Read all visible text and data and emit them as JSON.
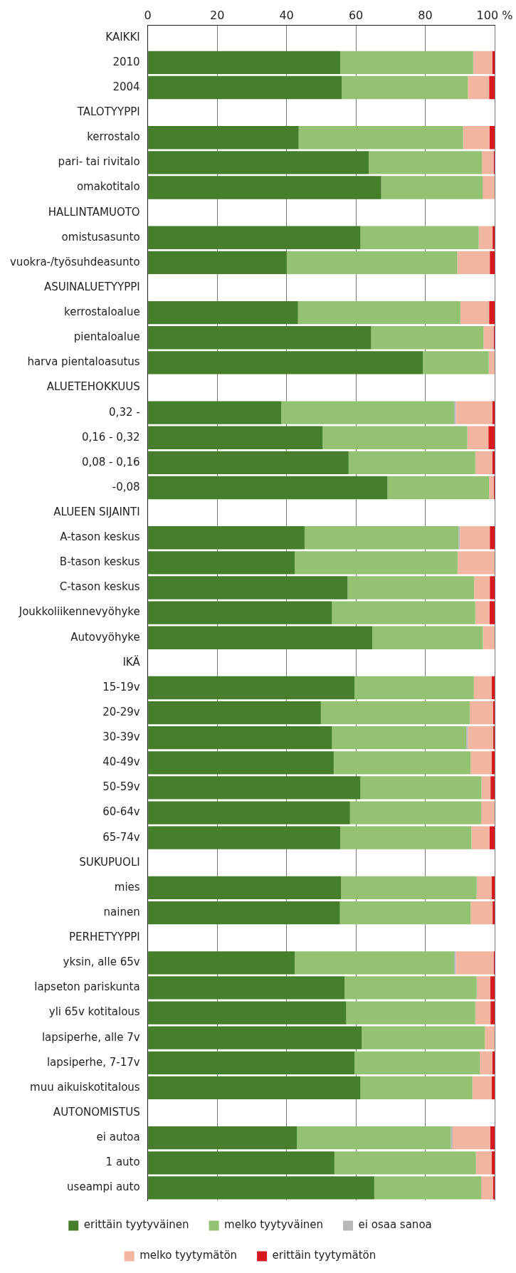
{
  "chart_data": {
    "type": "bar",
    "orientation": "horizontal",
    "stacked": true,
    "categories": [
      "KAIKKI",
      "2010",
      "2004",
      "TALOTYYPPI",
      "kerrostalo",
      "pari- tai rivitalo",
      "omakotitalo",
      "HALLINTAMUOTO",
      "omistusasunto",
      "vuokra-/työsuhdeasunto",
      "ASUINALUETYYPPI",
      "kerrostaloalue",
      "pientaloalue",
      "harva pientaloasutus",
      "ALUETEHOKKUUS",
      "0,32 -",
      "0,16 - 0,32",
      "0,08 - 0,16",
      "-0,08",
      "ALUEEN SIJAINTI",
      "A-tason keskus",
      "B-tason keskus",
      "C-tason keskus",
      "Joukkoliikennevyöhyke",
      "Autovyöhyke",
      "IKÄ",
      "15-19v",
      "20-29v",
      "30-39v",
      "40-49v",
      "50-59v",
      "60-64v",
      "65-74v",
      "SUKUPUOLI",
      "mies",
      "nainen",
      "PERHETYYPPI",
      "yksin, alle 65v",
      "lapseton pariskunta",
      "yli 65v kotitalous",
      "lapsiperhe, alle 7v",
      "lapsiperhe, 7-17v",
      "muu aikuiskotitalous",
      "AUTONOMISTUS",
      "ei autoa",
      "1 auto",
      "useampi auto"
    ],
    "series": [
      {
        "name": "erittäin tyytyväinen",
        "color": "#467f2c",
        "values": [
          null,
          55.5,
          55.9,
          null,
          43.5,
          63.7,
          67.3,
          null,
          61.3,
          40.0,
          null,
          43.3,
          64.4,
          79.3,
          null,
          38.5,
          50.4,
          57.9,
          69.1,
          null,
          45.2,
          42.4,
          57.6,
          53.1,
          64.7,
          null,
          59.6,
          49.9,
          53.1,
          53.6,
          61.3,
          58.3,
          55.5,
          null,
          55.7,
          55.4,
          null,
          42.4,
          56.7,
          57.2,
          61.7,
          59.6,
          61.3,
          null,
          43.0,
          53.8,
          65.3
        ]
      },
      {
        "name": "melko tyytyväinen",
        "color": "#92c272",
        "values": [
          null,
          38.3,
          36.4,
          null,
          47.4,
          32.6,
          29.2,
          null,
          34.1,
          49.2,
          null,
          46.8,
          32.4,
          19.0,
          null,
          49.8,
          41.7,
          36.5,
          29.3,
          null,
          44.4,
          46.9,
          36.5,
          41.3,
          31.9,
          null,
          34.4,
          42.9,
          38.7,
          39.5,
          34.9,
          37.8,
          37.8,
          null,
          39.1,
          37.7,
          null,
          45.9,
          38.1,
          37.2,
          35.5,
          36.1,
          32.3,
          null,
          44.4,
          40.8,
          30.8
        ]
      },
      {
        "name": "ei osaa sanoa",
        "color": "#b8b8b8",
        "values": [
          null,
          0,
          0,
          null,
          0,
          0,
          0,
          null,
          0,
          0,
          null,
          0,
          0,
          0,
          null,
          0.5,
          0,
          0,
          0,
          null,
          0.4,
          0,
          0,
          0,
          0,
          null,
          0,
          0,
          0.5,
          0,
          0,
          0,
          0,
          null,
          0,
          0,
          null,
          0.5,
          0,
          0,
          0,
          0,
          0,
          null,
          0.5,
          0,
          0
        ]
      },
      {
        "name": "melko tyytymätön",
        "color": "#f2b59f",
        "values": [
          null,
          5.5,
          6.1,
          null,
          7.6,
          3.4,
          3.5,
          null,
          4.0,
          9.4,
          null,
          8.3,
          2.9,
          1.7,
          null,
          10.5,
          6.1,
          4.9,
          1.4,
          null,
          8.6,
          10.7,
          4.5,
          4.1,
          3.4,
          null,
          5.1,
          6.7,
          7.3,
          6.0,
          2.6,
          3.9,
          5.2,
          null,
          4.3,
          6.3,
          null,
          10.9,
          3.9,
          4.4,
          2.8,
          3.6,
          5.5,
          null,
          10.8,
          4.5,
          3.4
        ]
      },
      {
        "name": "erittäin tyytymätön",
        "color": "#d7191f",
        "values": [
          null,
          0.7,
          1.6,
          null,
          1.5,
          0.3,
          0,
          null,
          0.6,
          1.4,
          null,
          1.6,
          0.3,
          0,
          null,
          0.7,
          1.8,
          0.7,
          0.2,
          null,
          1.4,
          0,
          1.4,
          1.5,
          0,
          null,
          0.9,
          0.5,
          0.4,
          0.9,
          1.2,
          0,
          1.5,
          null,
          0.9,
          0.6,
          null,
          0.3,
          1.3,
          1.2,
          0,
          0.7,
          0.9,
          null,
          1.3,
          0.9,
          0.5
        ]
      }
    ],
    "xlim": [
      0,
      100
    ],
    "xticks": [
      0,
      20,
      40,
      60,
      80,
      {
        "value": 100,
        "label": "100 %"
      }
    ],
    "grid": "x",
    "legend": "bottom"
  }
}
